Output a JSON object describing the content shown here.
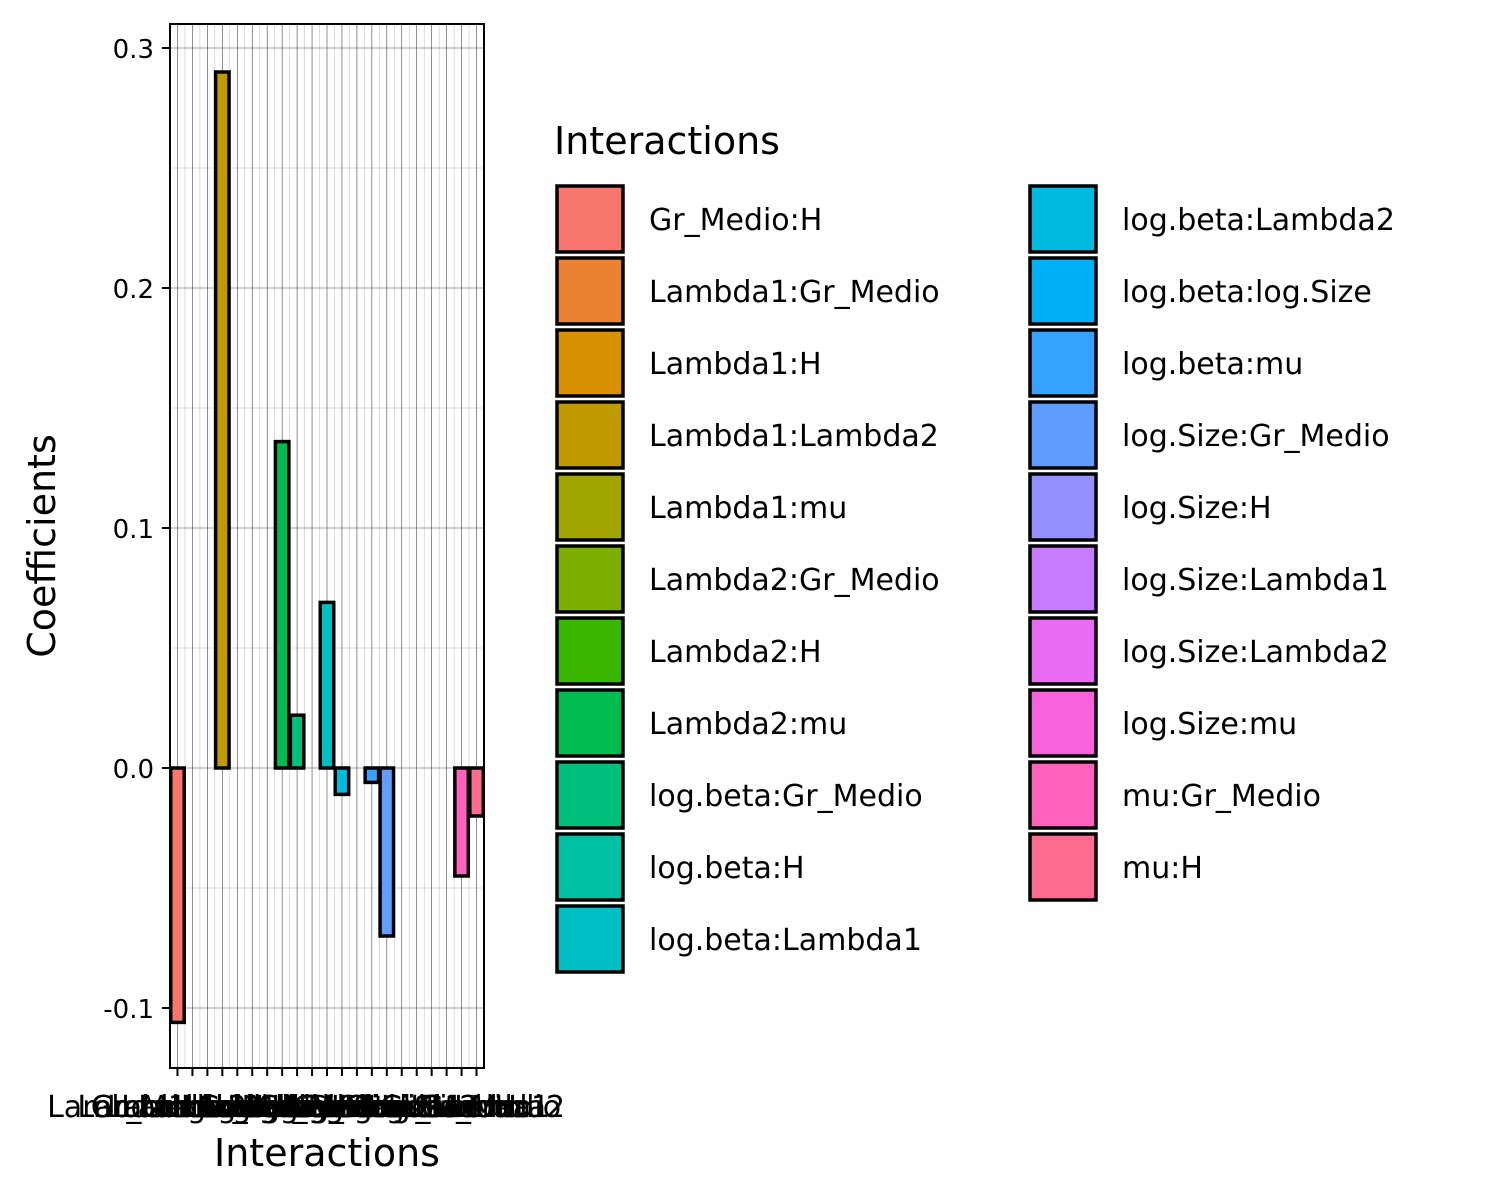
{
  "chart_data": {
    "type": "bar",
    "xlabel": "Interactions",
    "ylabel": "Coefficients",
    "ylim": [
      -0.125,
      0.31
    ],
    "yticks": [
      -0.1,
      0.0,
      0.1,
      0.2,
      0.3
    ],
    "ytick_labels": [
      "-0.1",
      "0.0",
      "0.1",
      "0.2",
      "0.3"
    ],
    "grid": true,
    "legend_title": "Interactions",
    "legend_placement": "right",
    "categories": [
      "Gr_Medio:H",
      "Lambda1:Gr_Medio",
      "Lambda1:H",
      "Lambda1:Lambda2",
      "Lambda1:mu",
      "Lambda2:Gr_Medio",
      "Lambda2:H",
      "Lambda2:mu",
      "log.beta:Gr_Medio",
      "log.beta:H",
      "log.beta:Lambda1",
      "log.beta:Lambda2",
      "log.beta:log.Size",
      "log.beta:mu",
      "log.Size:Gr_Medio",
      "log.Size:H",
      "log.Size:Lambda1",
      "log.Size:Lambda2",
      "log.Size:mu",
      "mu:Gr_Medio",
      "mu:H"
    ],
    "values": [
      -0.106,
      0.0,
      0.0,
      0.29,
      0.0,
      0.0,
      0.0,
      0.136,
      0.022,
      0.0,
      0.069,
      -0.011,
      0.0,
      -0.006,
      -0.07,
      0.0,
      0.0,
      0.0,
      0.0,
      -0.045,
      -0.02
    ],
    "colors": [
      "#F8766D",
      "#EA8331",
      "#D89000",
      "#C09B00",
      "#A3A500",
      "#7CAE00",
      "#39B600",
      "#00BB4E",
      "#00BF7D",
      "#00C1A3",
      "#00BFC4",
      "#00BAE0",
      "#00B0F6",
      "#35A2FF",
      "#619CFF",
      "#9590FF",
      "#C77CFF",
      "#E76BF3",
      "#FA62DB",
      "#FF62BC",
      "#FF6C91"
    ]
  }
}
